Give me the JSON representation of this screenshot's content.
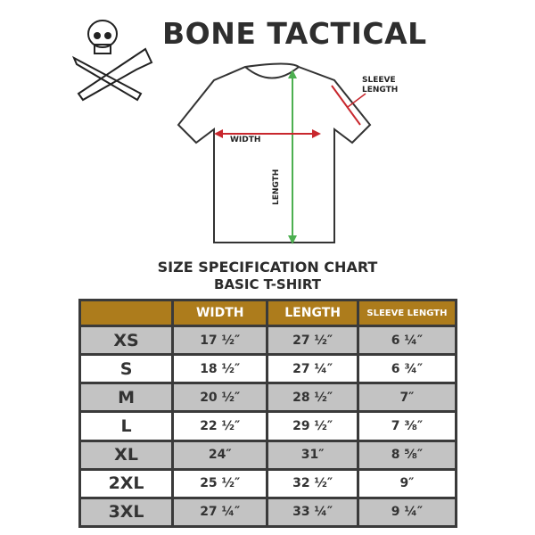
{
  "brand": "BONE TACTICAL",
  "logo_text": "BONE TACTICAL",
  "diagram": {
    "width_label": "WIDTH",
    "length_label": "LENGTH",
    "sleeve_label_1": "SLEEVE",
    "sleeve_label_2": "LENGTH"
  },
  "title": "SIZE SPECIFICATION CHART",
  "subtitle": "BASIC T-SHIRT",
  "colors": {
    "header": "#ad7c1c",
    "gray_row": "#c3c3c3",
    "width_arrow": "#c8272d",
    "length_arrow": "#4caf50"
  },
  "table": {
    "headers": [
      "",
      "WIDTH",
      "LENGTH",
      "SLEEVE LENGTH"
    ],
    "rows": [
      [
        "XS",
        "17 ½″",
        "27 ½″",
        "6 ¼″"
      ],
      [
        "S",
        "18 ½″",
        "27 ¼″",
        "6 ¾″"
      ],
      [
        "M",
        "20 ½″",
        "28 ½″",
        "7″"
      ],
      [
        "L",
        "22 ½″",
        "29 ½″",
        "7 ⅜″"
      ],
      [
        "XL",
        "24″",
        "31″",
        "8 ⅝″"
      ],
      [
        "2XL",
        "25 ½″",
        "32 ½″",
        "9″"
      ],
      [
        "3XL",
        "27 ¼″",
        "33 ¼″",
        "9 ¼″"
      ]
    ]
  }
}
